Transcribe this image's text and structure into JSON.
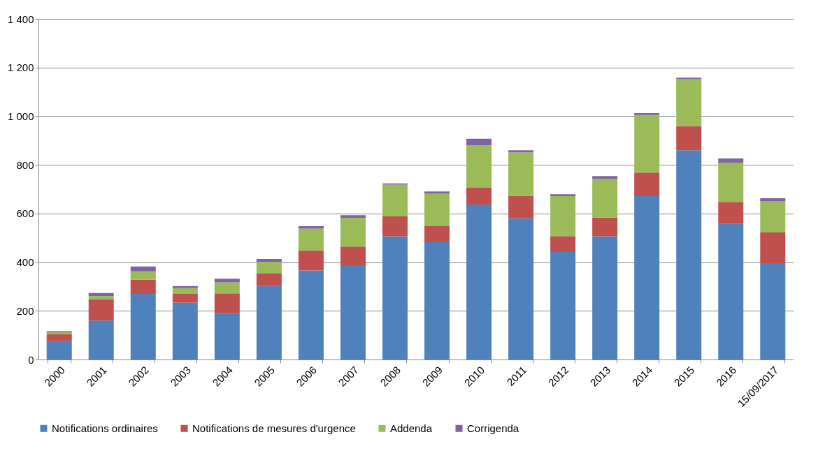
{
  "chart_data": {
    "type": "bar",
    "stacked": true,
    "categories": [
      "2000",
      "2001",
      "2002",
      "2003",
      "2004",
      "2005",
      "2006",
      "2007",
      "2008",
      "2009",
      "2010",
      "2011",
      "2012",
      "2013",
      "2014",
      "2015",
      "2016",
      "15/09/2017"
    ],
    "series": [
      {
        "name": "Notifications ordinaires",
        "color": "#4f81bd",
        "values": [
          75,
          160,
          270,
          234,
          190,
          302,
          366,
          387,
          506,
          482,
          637,
          580,
          442,
          506,
          671,
          860,
          557,
          396
        ]
      },
      {
        "name": "Notifications de mesures d'urgence",
        "color": "#c0504d",
        "values": [
          28,
          88,
          58,
          36,
          82,
          53,
          82,
          77,
          82,
          66,
          69,
          93,
          65,
          77,
          97,
          99,
          91,
          126
        ]
      },
      {
        "name": "Addenda",
        "color": "#9bbb59",
        "values": [
          9,
          12,
          34,
          23,
          45,
          46,
          90,
          118,
          131,
          133,
          174,
          178,
          164,
          160,
          237,
          193,
          161,
          128
        ]
      },
      {
        "name": "Corrigenda",
        "color": "#8064a2",
        "values": [
          4,
          13,
          20,
          9,
          15,
          12,
          10,
          11,
          5,
          10,
          27,
          9,
          8,
          11,
          8,
          6,
          17,
          13
        ]
      }
    ],
    "ylim": [
      0,
      1400
    ],
    "yticks": [
      0,
      200,
      400,
      600,
      800,
      {
        "value": 1000,
        "label": "1 000"
      },
      {
        "value": 1200,
        "label": "1 200"
      },
      {
        "value": 1400,
        "label": "1 400"
      }
    ],
    "grid": "y",
    "legend": "bottom"
  }
}
